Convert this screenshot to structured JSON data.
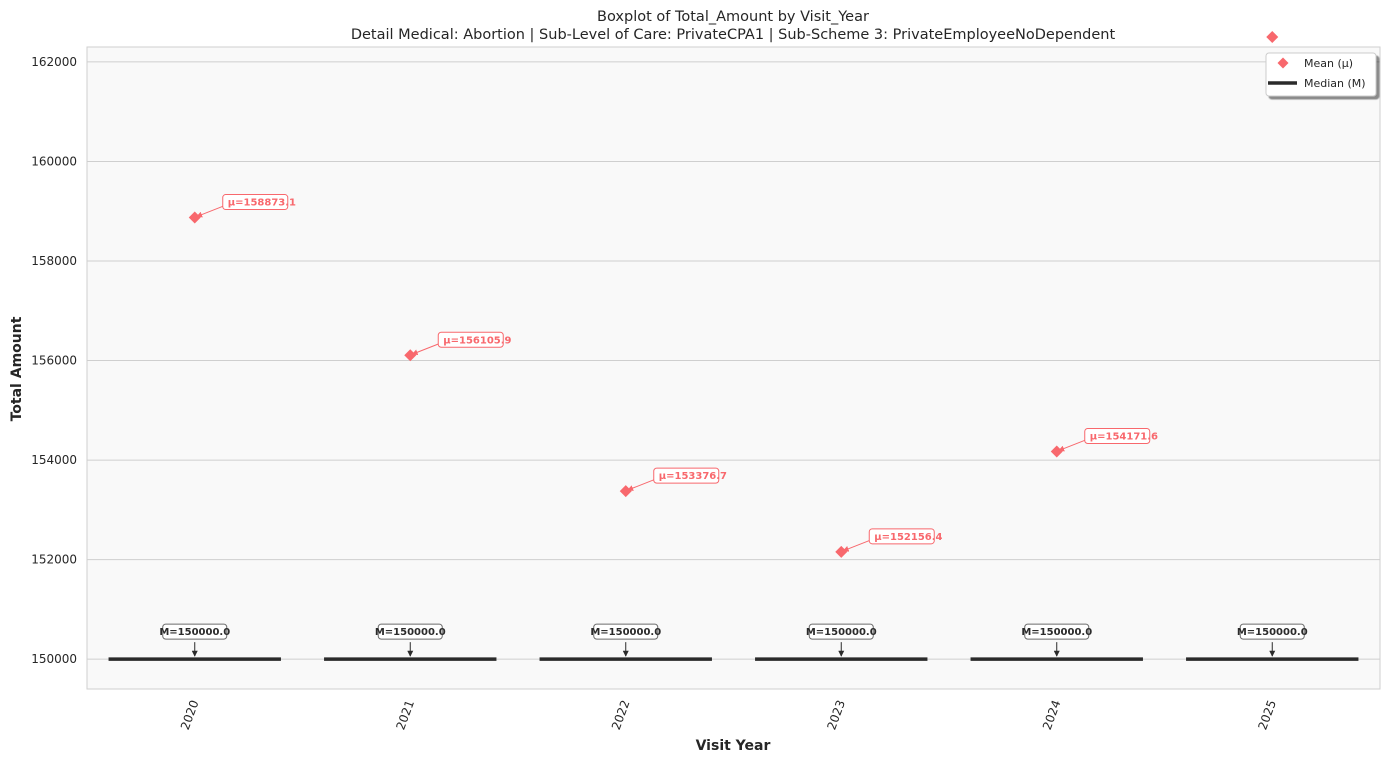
{
  "chart_data": {
    "type": "box",
    "title": "Boxplot of Total_Amount by Visit_Year",
    "subtitle": "Detail Medical: Abortion | Sub-Level of Care: PrivateCPA1 | Sub-Scheme 3: PrivateEmployeeNoDependent",
    "xlabel": "Visit Year",
    "ylabel": "Total Amount",
    "categories": [
      "2020",
      "2021",
      "2022",
      "2023",
      "2024",
      "2025"
    ],
    "medians": [
      150000.0,
      150000.0,
      150000.0,
      150000.0,
      150000.0,
      150000.0
    ],
    "median_labels": [
      "M=150000.0",
      "M=150000.0",
      "M=150000.0",
      "M=150000.0",
      "M=150000.0",
      "M=150000.0"
    ],
    "means": [
      158873.1,
      156105.9,
      153376.7,
      152156.4,
      154171.6,
      162500
    ],
    "mean_labels": [
      "μ=158873.1",
      "μ=156105.9",
      "μ=153376.7",
      "μ=152156.4",
      "μ=154171.6",
      ""
    ],
    "ylim": [
      149400,
      162300
    ],
    "yticks": [
      150000,
      152000,
      154000,
      156000,
      158000,
      160000,
      162000
    ],
    "grid": "horizontal",
    "legend": {
      "placement": "top-right",
      "entries": [
        {
          "label": "Mean (μ)",
          "marker": "diamond"
        },
        {
          "label": "Median (M)",
          "marker": "line"
        }
      ]
    },
    "colors": {
      "mean": "#f8686d",
      "median": "#2b2b2b",
      "plot_bg": "#f9f9f9",
      "grid": "#cfcfcf"
    }
  }
}
